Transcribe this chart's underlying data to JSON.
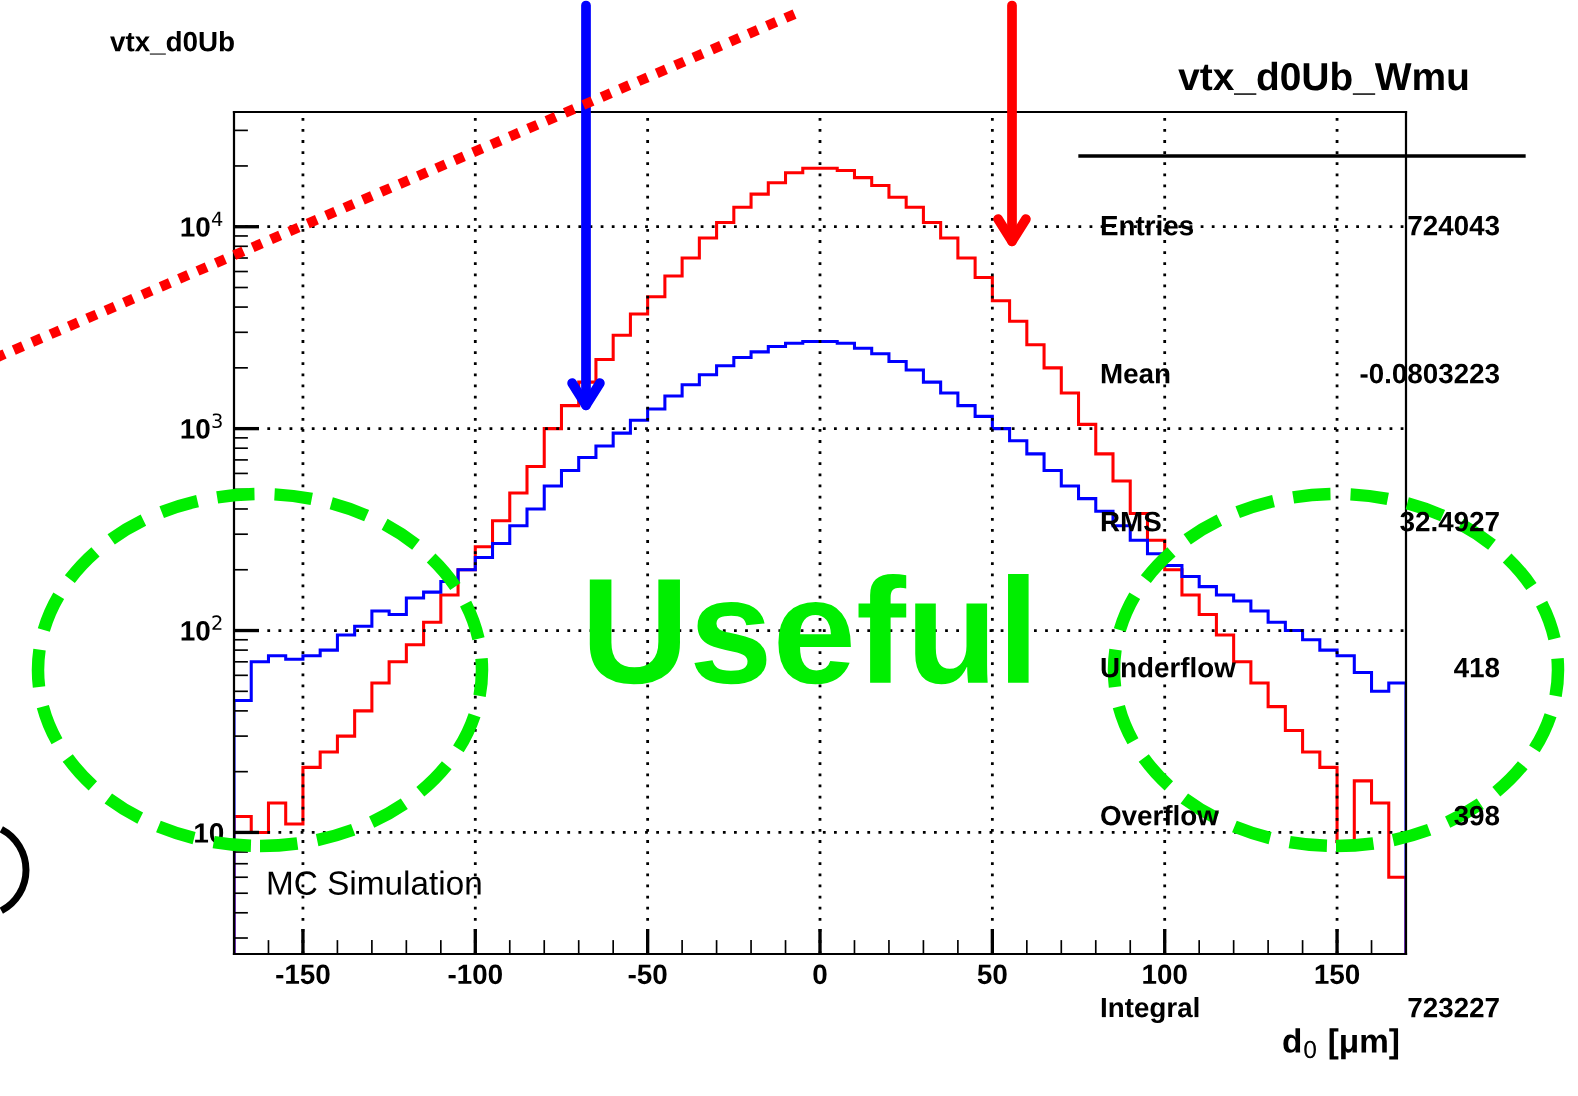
{
  "chart_data": {
    "type": "histogram",
    "title": "vtx_d0Ub",
    "xlabel": "d$_{0}$ [μm]",
    "bins": [
      -170,
      -165,
      -160,
      -155,
      -150,
      -145,
      -140,
      -135,
      -130,
      -125,
      -120,
      -115,
      -110,
      -105,
      -100,
      -95,
      -90,
      -85,
      -80,
      -75,
      -70,
      -65,
      -60,
      -55,
      -50,
      -45,
      -40,
      -35,
      -30,
      -25,
      -20,
      -15,
      -10,
      -5,
      0,
      5,
      10,
      15,
      20,
      25,
      30,
      35,
      40,
      45,
      50,
      55,
      60,
      65,
      70,
      75,
      80,
      85,
      90,
      95,
      100,
      105,
      110,
      115,
      120,
      125,
      130,
      135,
      140,
      145,
      150,
      155,
      160,
      165,
      170
    ],
    "series": [
      {
        "color": "#ff0000",
        "values": [
          12,
          10,
          14,
          11,
          21,
          25,
          30,
          40,
          55,
          70,
          85,
          110,
          150,
          200,
          260,
          350,
          480,
          650,
          1000,
          1300,
          1700,
          2200,
          2900,
          3700,
          4500,
          5700,
          7000,
          8800,
          10500,
          12500,
          14500,
          16500,
          18500,
          19500,
          19500,
          19000,
          17500,
          16000,
          14000,
          12500,
          10500,
          8800,
          7000,
          5600,
          4300,
          3400,
          2600,
          2000,
          1500,
          1050,
          750,
          550,
          380,
          280,
          200,
          150,
          120,
          95,
          70,
          55,
          42,
          32,
          25,
          21,
          9,
          18,
          14,
          6
        ]
      },
      {
        "color": "#0000ff",
        "values": [
          45,
          70,
          75,
          72,
          75,
          80,
          95,
          105,
          125,
          120,
          145,
          155,
          175,
          200,
          230,
          270,
          330,
          400,
          520,
          620,
          720,
          820,
          950,
          1100,
          1250,
          1450,
          1650,
          1850,
          2050,
          2250,
          2400,
          2550,
          2650,
          2700,
          2700,
          2650,
          2500,
          2350,
          2150,
          1950,
          1700,
          1500,
          1300,
          1150,
          1000,
          870,
          750,
          620,
          520,
          450,
          390,
          330,
          280,
          240,
          210,
          185,
          165,
          150,
          140,
          125,
          110,
          100,
          90,
          80,
          75,
          62,
          50,
          55
        ]
      }
    ],
    "log": "y",
    "xlim": [
      -170,
      170
    ],
    "ylim": [
      2.5,
      37000
    ],
    "xticks": [
      -150,
      -100,
      -50,
      0,
      50,
      100,
      150
    ],
    "yticks": [
      {
        "value": 10,
        "label": "10"
      },
      {
        "value": 100,
        "label": "10$^{2}$"
      },
      {
        "value": 1000,
        "label": "10$^{3}$"
      },
      {
        "value": 10000,
        "label": "10$^{4}$"
      }
    ],
    "grid": true,
    "legend": false,
    "line_style": "solid",
    "annotations": [
      "vtx_d0Ub_Wmu",
      "Entries",
      "724043",
      "Mean",
      "-0.0803223",
      "RMS",
      "32.4927",
      "Underflow",
      "418",
      "Overflow",
      "398",
      "Integral",
      "723227",
      "Useful",
      "MC Simulation"
    ]
  }
}
